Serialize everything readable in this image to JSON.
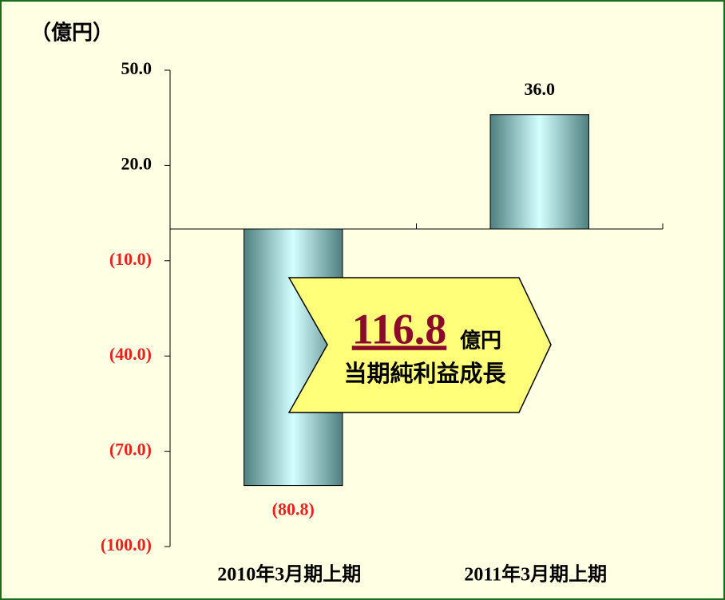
{
  "chart_data": {
    "type": "bar",
    "y_label": "（億円）",
    "categories": [
      "2010年3月期上期",
      "2011年3月期上期"
    ],
    "values": [
      -80.8,
      36.0
    ],
    "value_labels": [
      "(80.8)",
      "36.0"
    ],
    "ylim": [
      -100,
      50
    ],
    "yticks": [
      {
        "value": 50,
        "label": "50.0"
      },
      {
        "value": 20,
        "label": "20.0"
      },
      {
        "value": -10,
        "label": "(10.0)"
      },
      {
        "value": -40,
        "label": "(40.0)"
      },
      {
        "value": -70,
        "label": "(70.0)"
      },
      {
        "value": -100,
        "label": "(100.0)"
      }
    ],
    "negative_color": "#e8221c",
    "annotation": {
      "value": "116.8",
      "unit": "億円",
      "text": "当期純利益成長"
    }
  }
}
